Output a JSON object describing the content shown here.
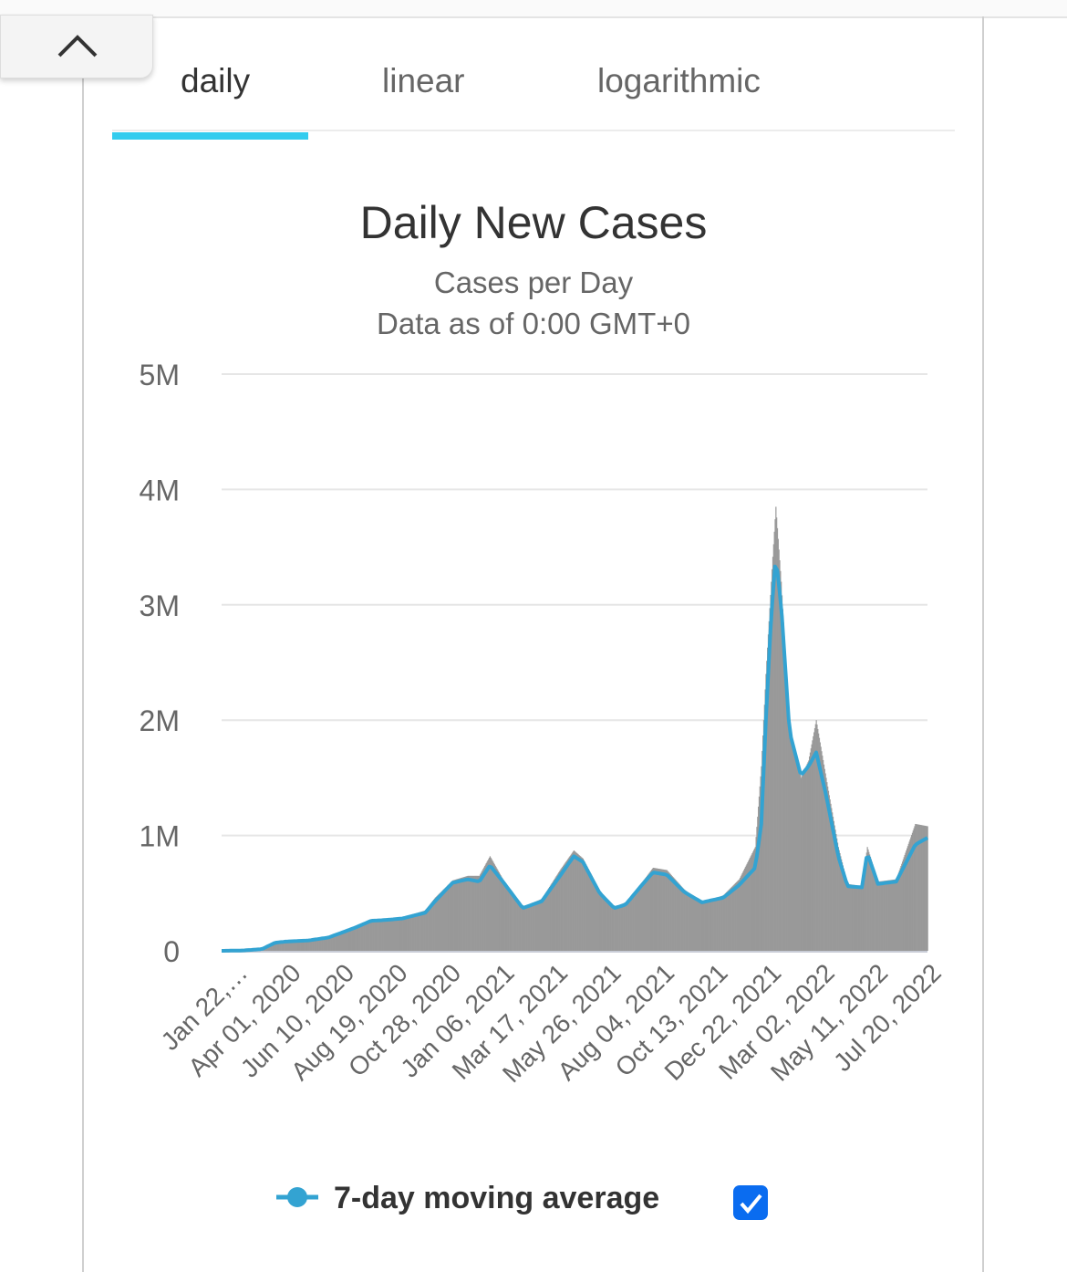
{
  "tabs": [
    {
      "label": "daily",
      "active": true
    },
    {
      "label": "linear",
      "active": false
    },
    {
      "label": "logarithmic",
      "active": false
    }
  ],
  "colors": {
    "accent": "#33ccee",
    "bars": "#999999",
    "moving_average": "#33a3d2",
    "gridline": "#e6e6e6",
    "checkbox": "#0a6cf0"
  },
  "chart_data": {
    "type": "bar",
    "title": "Daily New Cases",
    "subtitles": [
      "Cases per Day",
      "Data as of 0:00 GMT+0"
    ],
    "xlabel": "",
    "ylabel": "",
    "ylim": [
      0,
      5000000
    ],
    "yticks": [
      0,
      1000000,
      2000000,
      3000000,
      4000000,
      5000000
    ],
    "ytick_labels": [
      "0",
      "1M",
      "2M",
      "3M",
      "4M",
      "5M"
    ],
    "x_start": "2020-01-22",
    "x_end": "2022-08-05",
    "xtick_labels": [
      "Jan 22,…",
      "Apr 01, 2020",
      "Jun 10, 2020",
      "Aug 19, 2020",
      "Oct 28, 2020",
      "Jan 06, 2021",
      "Mar 17, 2021",
      "May 26, 2021",
      "Aug 04, 2021",
      "Oct 13, 2021",
      "Dec 22, 2021",
      "Mar 02, 2022",
      "May 11, 2022",
      "Jul 20, 2022"
    ],
    "grid": true,
    "series": [
      {
        "name": "Daily New Cases",
        "type": "bar",
        "points": [
          [
            "2020-01-22",
            0
          ],
          [
            "2020-02-19",
            5000
          ],
          [
            "2020-03-15",
            25000
          ],
          [
            "2020-04-01",
            75000
          ],
          [
            "2020-04-15",
            80000
          ],
          [
            "2020-05-15",
            95000
          ],
          [
            "2020-06-10",
            120000
          ],
          [
            "2020-07-15",
            210000
          ],
          [
            "2020-08-05",
            270000
          ],
          [
            "2020-08-19",
            270000
          ],
          [
            "2020-09-15",
            290000
          ],
          [
            "2020-10-15",
            350000
          ],
          [
            "2020-10-28",
            460000
          ],
          [
            "2020-11-20",
            610000
          ],
          [
            "2020-12-10",
            650000
          ],
          [
            "2020-12-25",
            650000
          ],
          [
            "2021-01-08",
            820000
          ],
          [
            "2021-01-25",
            620000
          ],
          [
            "2021-02-20",
            380000
          ],
          [
            "2021-03-17",
            450000
          ],
          [
            "2021-04-10",
            700000
          ],
          [
            "2021-04-28",
            870000
          ],
          [
            "2021-05-10",
            800000
          ],
          [
            "2021-06-01",
            520000
          ],
          [
            "2021-06-20",
            380000
          ],
          [
            "2021-07-05",
            420000
          ],
          [
            "2021-07-25",
            580000
          ],
          [
            "2021-08-10",
            720000
          ],
          [
            "2021-08-28",
            700000
          ],
          [
            "2021-09-20",
            530000
          ],
          [
            "2021-10-13",
            420000
          ],
          [
            "2021-11-10",
            480000
          ],
          [
            "2021-12-01",
            620000
          ],
          [
            "2021-12-22",
            900000
          ],
          [
            "2021-12-30",
            1600000
          ],
          [
            "2022-01-05",
            2400000
          ],
          [
            "2022-01-12",
            3200000
          ],
          [
            "2022-01-18",
            3850000
          ],
          [
            "2022-01-25",
            3200000
          ],
          [
            "2022-02-05",
            1900000
          ],
          [
            "2022-02-20",
            1500000
          ],
          [
            "2022-03-02",
            1650000
          ],
          [
            "2022-03-12",
            2000000
          ],
          [
            "2022-03-25",
            1500000
          ],
          [
            "2022-04-10",
            900000
          ],
          [
            "2022-04-22",
            580000
          ],
          [
            "2022-05-11",
            560000
          ],
          [
            "2022-05-18",
            900000
          ],
          [
            "2022-06-01",
            600000
          ],
          [
            "2022-06-25",
            620000
          ],
          [
            "2022-07-20",
            1100000
          ],
          [
            "2022-08-05",
            1080000
          ]
        ]
      },
      {
        "name": "7-day moving average",
        "type": "line",
        "points": [
          [
            "2020-01-22",
            0
          ],
          [
            "2020-02-19",
            3000
          ],
          [
            "2020-03-15",
            15000
          ],
          [
            "2020-04-01",
            70000
          ],
          [
            "2020-04-15",
            80000
          ],
          [
            "2020-05-15",
            90000
          ],
          [
            "2020-06-10",
            115000
          ],
          [
            "2020-07-15",
            200000
          ],
          [
            "2020-08-05",
            260000
          ],
          [
            "2020-08-19",
            265000
          ],
          [
            "2020-09-15",
            280000
          ],
          [
            "2020-10-15",
            330000
          ],
          [
            "2020-10-28",
            430000
          ],
          [
            "2020-11-20",
            590000
          ],
          [
            "2020-12-10",
            620000
          ],
          [
            "2020-12-25",
            600000
          ],
          [
            "2021-01-08",
            740000
          ],
          [
            "2021-01-25",
            600000
          ],
          [
            "2021-02-20",
            370000
          ],
          [
            "2021-03-17",
            430000
          ],
          [
            "2021-04-10",
            650000
          ],
          [
            "2021-04-28",
            820000
          ],
          [
            "2021-05-10",
            770000
          ],
          [
            "2021-06-01",
            500000
          ],
          [
            "2021-06-20",
            370000
          ],
          [
            "2021-07-05",
            400000
          ],
          [
            "2021-07-25",
            560000
          ],
          [
            "2021-08-10",
            680000
          ],
          [
            "2021-08-28",
            660000
          ],
          [
            "2021-09-20",
            510000
          ],
          [
            "2021-10-13",
            420000
          ],
          [
            "2021-11-10",
            460000
          ],
          [
            "2021-12-01",
            570000
          ],
          [
            "2021-12-22",
            720000
          ],
          [
            "2021-12-30",
            1100000
          ],
          [
            "2022-01-05",
            2000000
          ],
          [
            "2022-01-12",
            2900000
          ],
          [
            "2022-01-18",
            3420000
          ],
          [
            "2022-01-25",
            3000000
          ],
          [
            "2022-02-05",
            1900000
          ],
          [
            "2022-02-20",
            1520000
          ],
          [
            "2022-03-02",
            1600000
          ],
          [
            "2022-03-12",
            1720000
          ],
          [
            "2022-03-25",
            1350000
          ],
          [
            "2022-04-10",
            820000
          ],
          [
            "2022-04-22",
            560000
          ],
          [
            "2022-05-11",
            550000
          ],
          [
            "2022-05-18",
            850000
          ],
          [
            "2022-06-01",
            580000
          ],
          [
            "2022-06-25",
            600000
          ],
          [
            "2022-07-20",
            920000
          ],
          [
            "2022-08-05",
            980000
          ]
        ]
      }
    ]
  },
  "legend": {
    "label": "7-day moving average",
    "checked": true
  }
}
